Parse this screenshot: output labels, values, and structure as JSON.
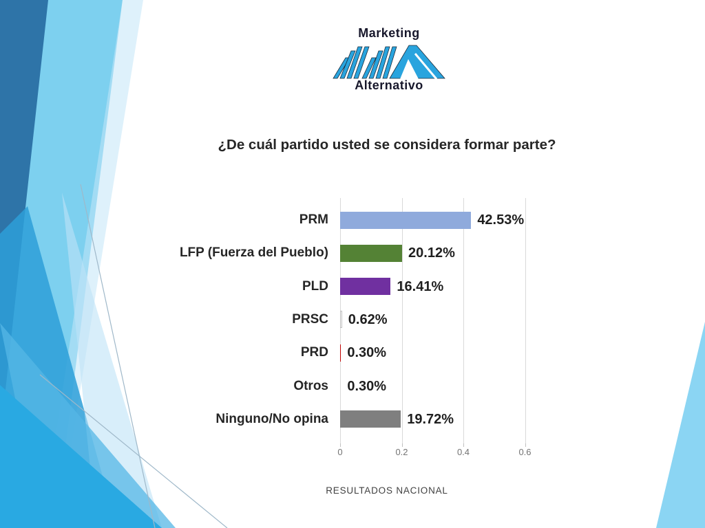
{
  "logo": {
    "top_text": "Marketing",
    "bottom_text": "Alternativo",
    "mark_color": "#29A4DE",
    "outline_color": "#1c2b3a",
    "text_color": "#17172b"
  },
  "title": "¿De cuál partido usted se considera formar parte?",
  "footer": "RESULTADOS NACIONAL",
  "chart_data": {
    "type": "bar",
    "orientation": "horizontal",
    "title": "¿De cuál partido usted se considera formar parte?",
    "categories": [
      "PRM",
      "LFP (Fuerza del Pueblo)",
      "PLD",
      "PRSC",
      "PRD",
      "Otros",
      "Ninguno/No opina"
    ],
    "values": [
      42.53,
      20.12,
      16.41,
      0.62,
      0.3,
      0.3,
      19.72
    ],
    "value_labels": [
      "42.53%",
      "20.12%",
      "16.41%",
      "0.62%",
      "0.30%",
      "0.30%",
      "19.72%"
    ],
    "bar_colors": [
      "#8FAADC",
      "#548235",
      "#7030A0",
      "#FFFFFF",
      "#C00000",
      "#D9D9D9",
      "#7F7F7F"
    ],
    "bar_borders": [
      null,
      null,
      null,
      "#BFBFBF",
      null,
      null,
      null
    ],
    "x_ticks": [
      {
        "label": "0",
        "value": 0.0
      },
      {
        "label": "0.2",
        "value": 0.2
      },
      {
        "label": "0.4",
        "value": 0.4
      },
      {
        "label": "0.6",
        "value": 0.6
      }
    ],
    "xlim": [
      0,
      0.6
    ],
    "value_axis_units": "fraction_of_1 (bars labeled as percent)",
    "grid": true,
    "legend": false
  },
  "decor": {
    "dark_blue": "#2E74A8",
    "sky_blue": "#7DD0EF",
    "mid_blue": "#2D9FD8",
    "cyan": "#29A9E2",
    "pale_blue": "#C3E6F8",
    "right_wedge": "#8BD5F3",
    "line_color": "#9FB8C9"
  }
}
